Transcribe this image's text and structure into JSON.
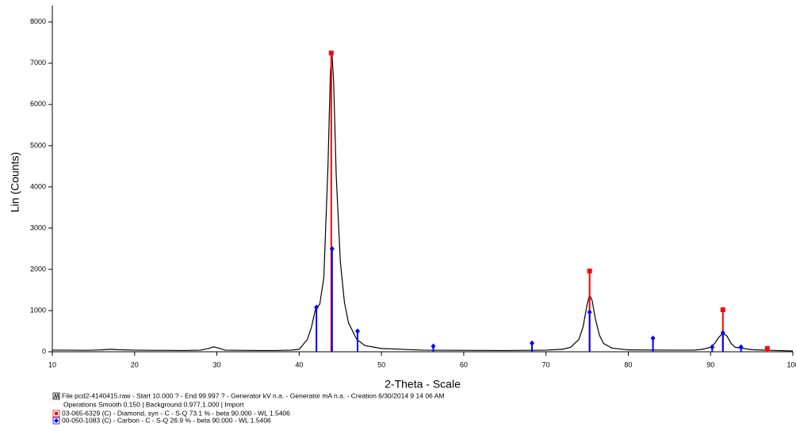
{
  "chart_data": {
    "type": "line",
    "ylabel": "Lin (Counts)",
    "xlabel": "2-Theta - Scale",
    "xlim": [
      10,
      100
    ],
    "ylim": [
      0,
      8400
    ],
    "xticks": [
      10,
      20,
      30,
      40,
      50,
      60,
      70,
      80,
      90,
      100
    ],
    "yticks": [
      0,
      1000,
      2000,
      3000,
      4000,
      5000,
      6000,
      7000,
      8000
    ],
    "operations": "Operations Smooth 0.150 | Background 0.977,1.000 | Import",
    "series": [
      {
        "name": "File pcd2-4140415.raw - Start  10.000 ? - End  99.997 ? - Generator kV  n.a. - Generator mA  n.a. - Creation  6/30/2014 9 14 06 AM",
        "color": "#000000",
        "style": "line",
        "x": [
          10,
          12,
          14,
          16,
          17,
          18,
          20,
          22,
          24,
          26,
          28,
          29,
          29.6,
          30.2,
          31,
          33,
          35,
          37,
          39,
          40,
          41,
          41.5,
          42,
          42.5,
          43,
          43.5,
          43.8,
          44,
          44.2,
          44.5,
          45,
          45.5,
          46,
          47,
          48,
          50,
          55,
          60,
          65,
          70,
          72,
          73,
          74,
          74.5,
          75,
          75.3,
          75.6,
          76,
          76.5,
          77,
          78,
          80,
          85,
          88,
          89,
          90,
          90.5,
          91,
          91.5,
          92,
          92.5,
          93,
          95,
          98,
          100
        ],
        "values": [
          40,
          40,
          35,
          45,
          60,
          50,
          40,
          35,
          35,
          30,
          40,
          80,
          120,
          90,
          40,
          35,
          30,
          30,
          40,
          60,
          300,
          600,
          1050,
          1150,
          1800,
          4500,
          6800,
          7200,
          6500,
          4300,
          2200,
          1200,
          700,
          300,
          150,
          80,
          40,
          35,
          30,
          40,
          60,
          110,
          300,
          600,
          1150,
          1380,
          1250,
          800,
          400,
          200,
          90,
          45,
          40,
          40,
          60,
          110,
          200,
          350,
          450,
          380,
          200,
          110,
          50,
          30,
          20
        ]
      },
      {
        "name": "03-065-6329 (C) - Diamond, syn - C - S-Q 73.1 % - beta 90.000 - WL  1.5406",
        "color": "#ff0000",
        "style": "stick",
        "marker": "square",
        "x": [
          43.9,
          75.3,
          91.5,
          96.9
        ],
        "values": [
          7250,
          1960,
          1020,
          80
        ]
      },
      {
        "name": "00-050-1083 (C) - Carbon - C - S-Q 26.9 % - beta 90.000 - WL  1.5406",
        "color": "#0000ff",
        "style": "stick",
        "marker": "diamond",
        "x": [
          42.1,
          44.0,
          47.1,
          56.3,
          68.3,
          75.3,
          83.0,
          90.2,
          91.5,
          93.7
        ],
        "values": [
          1080,
          2500,
          500,
          135,
          210,
          960,
          330,
          115,
          460,
          115
        ]
      }
    ]
  }
}
